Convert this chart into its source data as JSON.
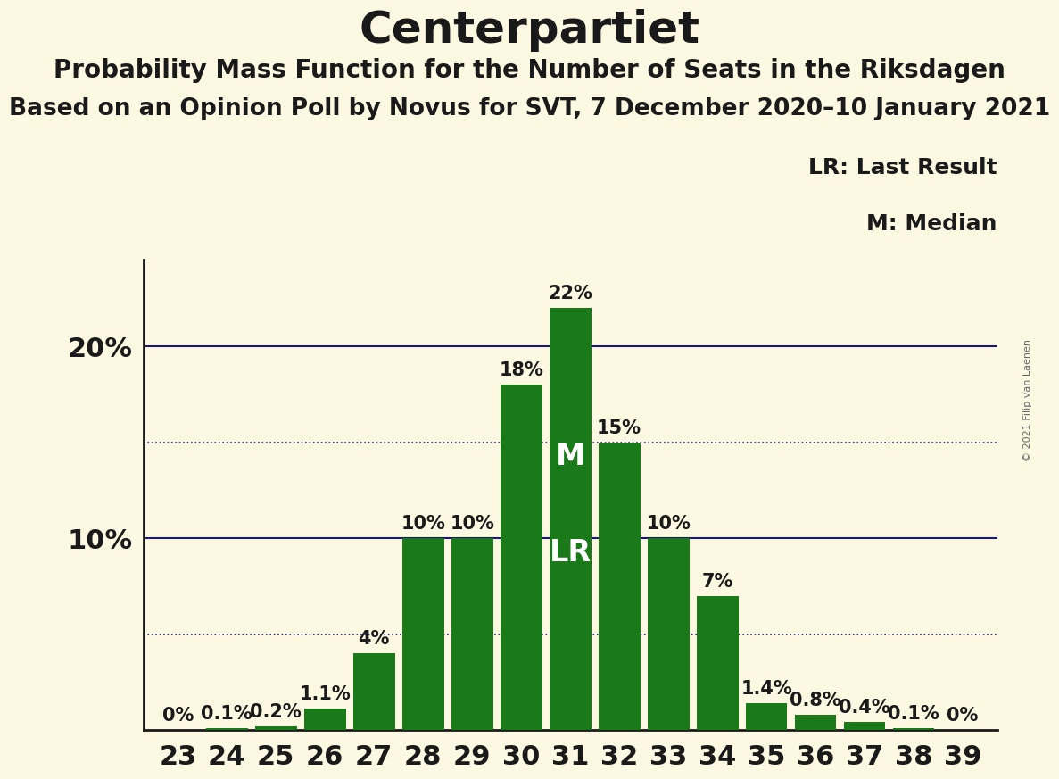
{
  "title": "Centerpartiet",
  "subtitle1": "Probability Mass Function for the Number of Seats in the Riksdagen",
  "subtitle2": "Based on an Opinion Poll by Novus for SVT, 7 December 2020–10 January 2021",
  "copyright": "© 2021 Filip van Laenen",
  "seats": [
    23,
    24,
    25,
    26,
    27,
    28,
    29,
    30,
    31,
    32,
    33,
    34,
    35,
    36,
    37,
    38,
    39
  ],
  "probabilities": [
    0.0,
    0.1,
    0.2,
    1.1,
    4.0,
    10.0,
    10.0,
    18.0,
    22.0,
    15.0,
    10.0,
    7.0,
    1.4,
    0.8,
    0.4,
    0.1,
    0.0
  ],
  "labels": [
    "0%",
    "0.1%",
    "0.2%",
    "1.1%",
    "4%",
    "10%",
    "10%",
    "18%",
    "22%",
    "15%",
    "10%",
    "7%",
    "1.4%",
    "0.8%",
    "0.4%",
    "0.1%",
    "0%"
  ],
  "bar_color": "#1a7a1a",
  "background_color": "#fdf8e1",
  "median_seat": 31,
  "lr_seat": 31,
  "solid_lines": [
    10.0,
    20.0
  ],
  "dotted_lines": [
    5.0,
    15.0
  ],
  "legend_lr": "LR: Last Result",
  "legend_m": "M: Median",
  "title_fontsize": 36,
  "subtitle1_fontsize": 20,
  "subtitle2_fontsize": 19,
  "label_fontsize": 15,
  "axis_fontsize": 22,
  "ytick_fontsize": 22,
  "legend_fontsize": 18,
  "mlr_fontsize": 24,
  "line_color": "#1a1a6a",
  "text_color": "#1a1a1a",
  "copyright_color": "#666666"
}
